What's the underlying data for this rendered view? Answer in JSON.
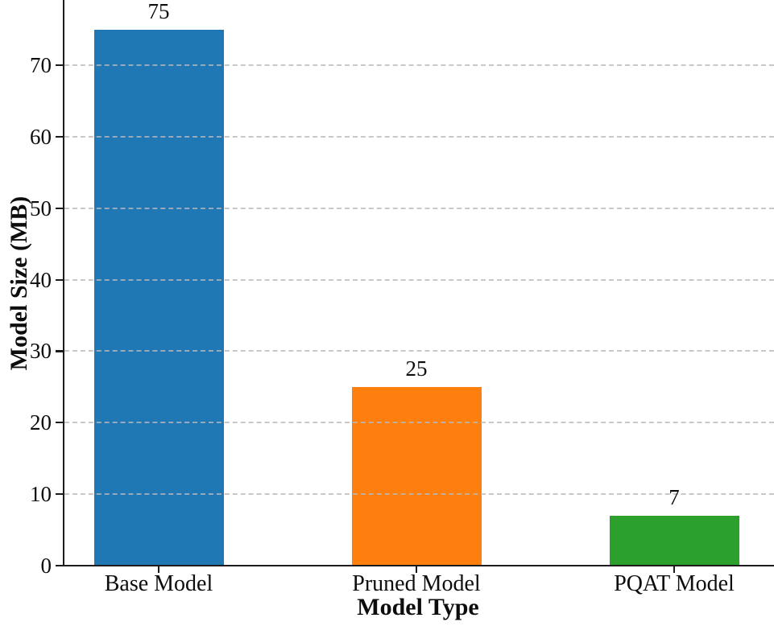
{
  "chart_data": {
    "type": "bar",
    "categories": [
      "Base Model",
      "Pruned Model",
      "PQAT Model"
    ],
    "values": [
      75,
      25,
      7
    ],
    "value_labels": [
      "75",
      "25",
      "7"
    ],
    "bar_colors": [
      "#1f77b4",
      "#ff7f0e",
      "#2ca02c"
    ],
    "title": "",
    "xlabel": "Model Type",
    "ylabel": "Model Size (MB)",
    "yticks": [
      0,
      10,
      20,
      30,
      40,
      50,
      60,
      70
    ],
    "ytick_labels": [
      "0",
      "10",
      "20",
      "30",
      "40",
      "50",
      "60",
      "70"
    ],
    "ylim": [
      0,
      79
    ],
    "grid": "horizontal-dashed",
    "grid_color": "#b9b9b9",
    "legend": "none",
    "axis_color": "#1c1c1c",
    "text_color": "#0d0d0d",
    "background_color": "#ffffff"
  }
}
